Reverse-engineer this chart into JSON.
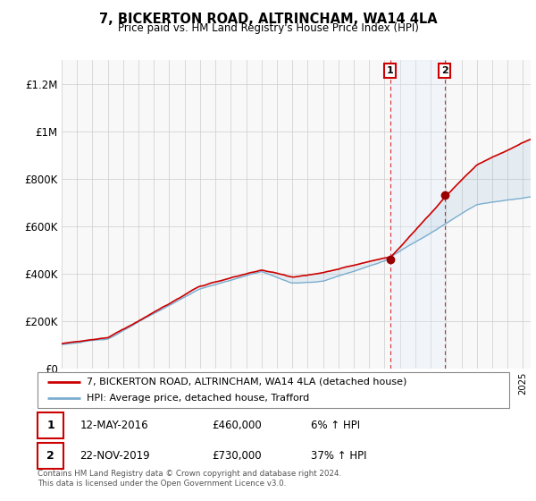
{
  "title": "7, BICKERTON ROAD, ALTRINCHAM, WA14 4LA",
  "subtitle": "Price paid vs. HM Land Registry's House Price Index (HPI)",
  "legend_line1": "7, BICKERTON ROAD, ALTRINCHAM, WA14 4LA (detached house)",
  "legend_line2": "HPI: Average price, detached house, Trafford",
  "annotation1_date": "12-MAY-2016",
  "annotation1_price": "£460,000",
  "annotation1_hpi": "6% ↑ HPI",
  "annotation2_date": "22-NOV-2019",
  "annotation2_price": "£730,000",
  "annotation2_hpi": "37% ↑ HPI",
  "footer": "Contains HM Land Registry data © Crown copyright and database right 2024.\nThis data is licensed under the Open Government Licence v3.0.",
  "red_color": "#cc0000",
  "blue_color": "#7aadcf",
  "shade_color": "#ddeeff",
  "ylim": [
    0,
    1300000
  ],
  "yticks": [
    0,
    200000,
    400000,
    600000,
    800000,
    1000000,
    1200000
  ],
  "ytick_labels": [
    "£0",
    "£200K",
    "£400K",
    "£600K",
    "£800K",
    "£1M",
    "£1.2M"
  ],
  "sale1_x": 2016.37,
  "sale1_y": 460000,
  "sale2_x": 2019.9,
  "sale2_y": 730000,
  "xmin": 1995,
  "xmax": 2025.5
}
